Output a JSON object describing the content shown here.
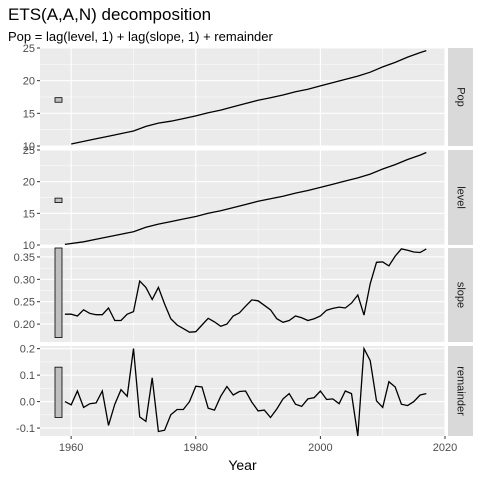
{
  "title": "ETS(A,A,N) decomposition",
  "subtitle": "Pop = lag(level, 1) + lag(slope, 1) + remainder",
  "chart_data": {
    "type": "line",
    "title": "ETS(A,A,N) decomposition",
    "subtitle": "Pop = lag(level, 1) + lag(slope, 1) + remainder",
    "xlabel": "Year",
    "xlim": [
      1955,
      2020
    ],
    "x_ticks": [
      1960,
      1980,
      2000,
      2020
    ],
    "grid": true,
    "panels": [
      {
        "name": "Pop",
        "ylim": [
          10,
          25
        ],
        "y_ticks": [
          10,
          15,
          20,
          25
        ],
        "scale_bar": [
          16.7,
          17.4
        ],
        "x": [
          1960,
          1962,
          1964,
          1966,
          1968,
          1970,
          1972,
          1974,
          1976,
          1978,
          1980,
          1982,
          1984,
          1986,
          1988,
          1990,
          1992,
          1994,
          1996,
          1998,
          2000,
          2002,
          2004,
          2006,
          2008,
          2010,
          2012,
          2014,
          2016,
          2017
        ],
        "values": [
          10.3,
          10.7,
          11.1,
          11.5,
          11.9,
          12.3,
          13.0,
          13.5,
          13.8,
          14.2,
          14.6,
          15.1,
          15.5,
          16.0,
          16.5,
          17.0,
          17.4,
          17.8,
          18.3,
          18.7,
          19.2,
          19.7,
          20.2,
          20.7,
          21.3,
          22.1,
          22.8,
          23.6,
          24.3,
          24.6
        ]
      },
      {
        "name": "level",
        "ylim": [
          10,
          25
        ],
        "y_ticks": [
          10,
          15,
          20,
          25
        ],
        "scale_bar": [
          16.7,
          17.4
        ],
        "x": [
          1959,
          1962,
          1964,
          1966,
          1968,
          1970,
          1972,
          1974,
          1976,
          1978,
          1980,
          1982,
          1984,
          1986,
          1988,
          1990,
          1992,
          1994,
          1996,
          1998,
          2000,
          2002,
          2004,
          2006,
          2008,
          2010,
          2012,
          2014,
          2016,
          2017
        ],
        "values": [
          10.1,
          10.5,
          10.9,
          11.3,
          11.7,
          12.1,
          12.8,
          13.3,
          13.7,
          14.1,
          14.5,
          15.0,
          15.4,
          15.9,
          16.4,
          16.9,
          17.3,
          17.7,
          18.2,
          18.6,
          19.1,
          19.6,
          20.1,
          20.6,
          21.2,
          22.0,
          22.7,
          23.5,
          24.2,
          24.6
        ]
      },
      {
        "name": "slope",
        "ylim": [
          0.16,
          0.37
        ],
        "y_ticks": [
          0.2,
          0.25,
          0.3,
          0.35
        ],
        "y_tick_labels": [
          "0.20",
          "0.25",
          "0.30",
          "0.35"
        ],
        "scale_bar": [
          0.17,
          0.37
        ],
        "x": [
          1959,
          1960,
          1961,
          1962,
          1963,
          1964,
          1965,
          1966,
          1967,
          1968,
          1969,
          1970,
          1971,
          1972,
          1973,
          1974,
          1975,
          1976,
          1977,
          1978,
          1979,
          1980,
          1981,
          1982,
          1983,
          1984,
          1985,
          1986,
          1987,
          1988,
          1989,
          1990,
          1991,
          1992,
          1993,
          1994,
          1995,
          1996,
          1997,
          1998,
          1999,
          2000,
          2001,
          2002,
          2003,
          2004,
          2005,
          2006,
          2007,
          2008,
          2009,
          2010,
          2011,
          2012,
          2013,
          2014,
          2015,
          2016,
          2017
        ],
        "values": [
          0.222,
          0.222,
          0.218,
          0.232,
          0.224,
          0.221,
          0.221,
          0.236,
          0.208,
          0.208,
          0.222,
          0.228,
          0.296,
          0.282,
          0.255,
          0.282,
          0.245,
          0.212,
          0.198,
          0.19,
          0.182,
          0.183,
          0.198,
          0.213,
          0.205,
          0.195,
          0.2,
          0.218,
          0.225,
          0.24,
          0.254,
          0.252,
          0.242,
          0.232,
          0.212,
          0.204,
          0.208,
          0.218,
          0.214,
          0.208,
          0.212,
          0.218,
          0.231,
          0.235,
          0.238,
          0.236,
          0.247,
          0.265,
          0.22,
          0.29,
          0.338,
          0.339,
          0.33,
          0.352,
          0.368,
          0.365,
          0.361,
          0.36,
          0.368
        ]
      },
      {
        "name": "remainder",
        "ylim": [
          -0.13,
          0.21
        ],
        "y_ticks": [
          -0.1,
          0.0,
          0.1,
          0.2
        ],
        "y_tick_labels": [
          "-0.1",
          "0.0",
          "0.1",
          "0.2"
        ],
        "scale_bar": [
          -0.06,
          0.13
        ],
        "x": [
          1959,
          1960,
          1961,
          1962,
          1963,
          1964,
          1965,
          1966,
          1967,
          1968,
          1969,
          1970,
          1971,
          1972,
          1973,
          1974,
          1975,
          1976,
          1977,
          1978,
          1979,
          1980,
          1981,
          1982,
          1983,
          1984,
          1985,
          1986,
          1987,
          1988,
          1989,
          1990,
          1991,
          1992,
          1993,
          1994,
          1995,
          1996,
          1997,
          1998,
          1999,
          2000,
          2001,
          2002,
          2003,
          2004,
          2005,
          2006,
          2007,
          2008,
          2009,
          2010,
          2011,
          2012,
          2013,
          2014,
          2015,
          2016,
          2017
        ],
        "values": [
          0.0,
          -0.012,
          0.04,
          -0.022,
          -0.008,
          -0.005,
          0.04,
          -0.09,
          -0.01,
          0.045,
          0.02,
          0.2,
          -0.058,
          -0.075,
          0.09,
          -0.113,
          -0.108,
          -0.05,
          -0.03,
          -0.03,
          0.0,
          0.058,
          0.055,
          -0.025,
          -0.032,
          0.02,
          0.057,
          0.025,
          0.038,
          0.04,
          -0.002,
          -0.035,
          -0.032,
          -0.06,
          -0.028,
          0.01,
          0.03,
          -0.01,
          -0.018,
          0.01,
          0.015,
          0.04,
          0.008,
          0.01,
          -0.008,
          0.04,
          0.03,
          -0.13,
          0.2,
          0.155,
          0.003,
          -0.022,
          0.075,
          0.055,
          -0.01,
          -0.015,
          0.0,
          0.025,
          0.03
        ]
      }
    ],
    "colors": {
      "panel_bg": "#ebebeb",
      "strip_bg": "#d9d9d9",
      "grid": "#ffffff",
      "line": "#000000",
      "scale_bar": "#bfbfbf"
    }
  }
}
